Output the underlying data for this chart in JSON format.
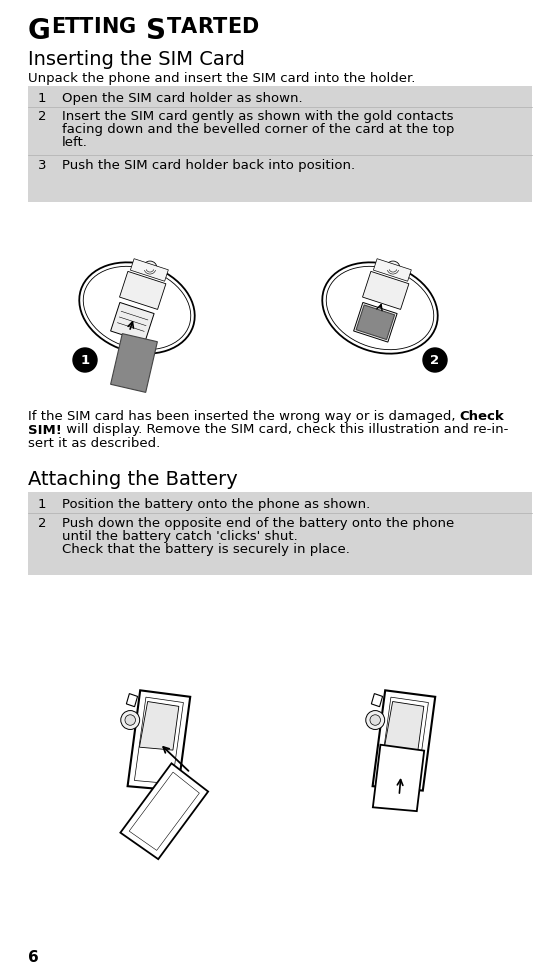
{
  "title": "Getting Started",
  "section1_heading": "Inserting the SIM Card",
  "section1_intro": "Unpack the phone and insert the SIM card into the holder.",
  "sim_step1": "Open the SIM card holder as shown.",
  "sim_step2_line1": "Insert the SIM card gently as shown with the gold contacts",
  "sim_step2_line2": "facing down and the bevelled corner of the card at the top",
  "sim_step2_line3": "left.",
  "sim_step3": "Push the SIM card holder back into position.",
  "note_line1_normal": "If the SIM card has been inserted the wrong way or is damaged, ",
  "note_line1_bold": "Check",
  "note_line2_bold": "SIM!",
  "note_line2_rest": " will display. Remove the SIM card, check this illustration and re-in-",
  "note_line3": "sert it as described.",
  "section2_heading": "Attaching the Battery",
  "bat_step1": "Position the battery onto the phone as shown.",
  "bat_step2_line1": "Push down the opposite end of the battery onto the phone",
  "bat_step2_line2": "until the battery catch 'clicks' shut.",
  "bat_step2_line3": "Check that the battery is securely in place.",
  "page_number": "6",
  "table_bg": "#d4d4d4",
  "bg_color": "#ffffff",
  "ML": 18,
  "MR": 522,
  "body_fs": 9.5,
  "heading_fs": 14,
  "title_upper_fs": 20,
  "title_lower_fs": 15
}
